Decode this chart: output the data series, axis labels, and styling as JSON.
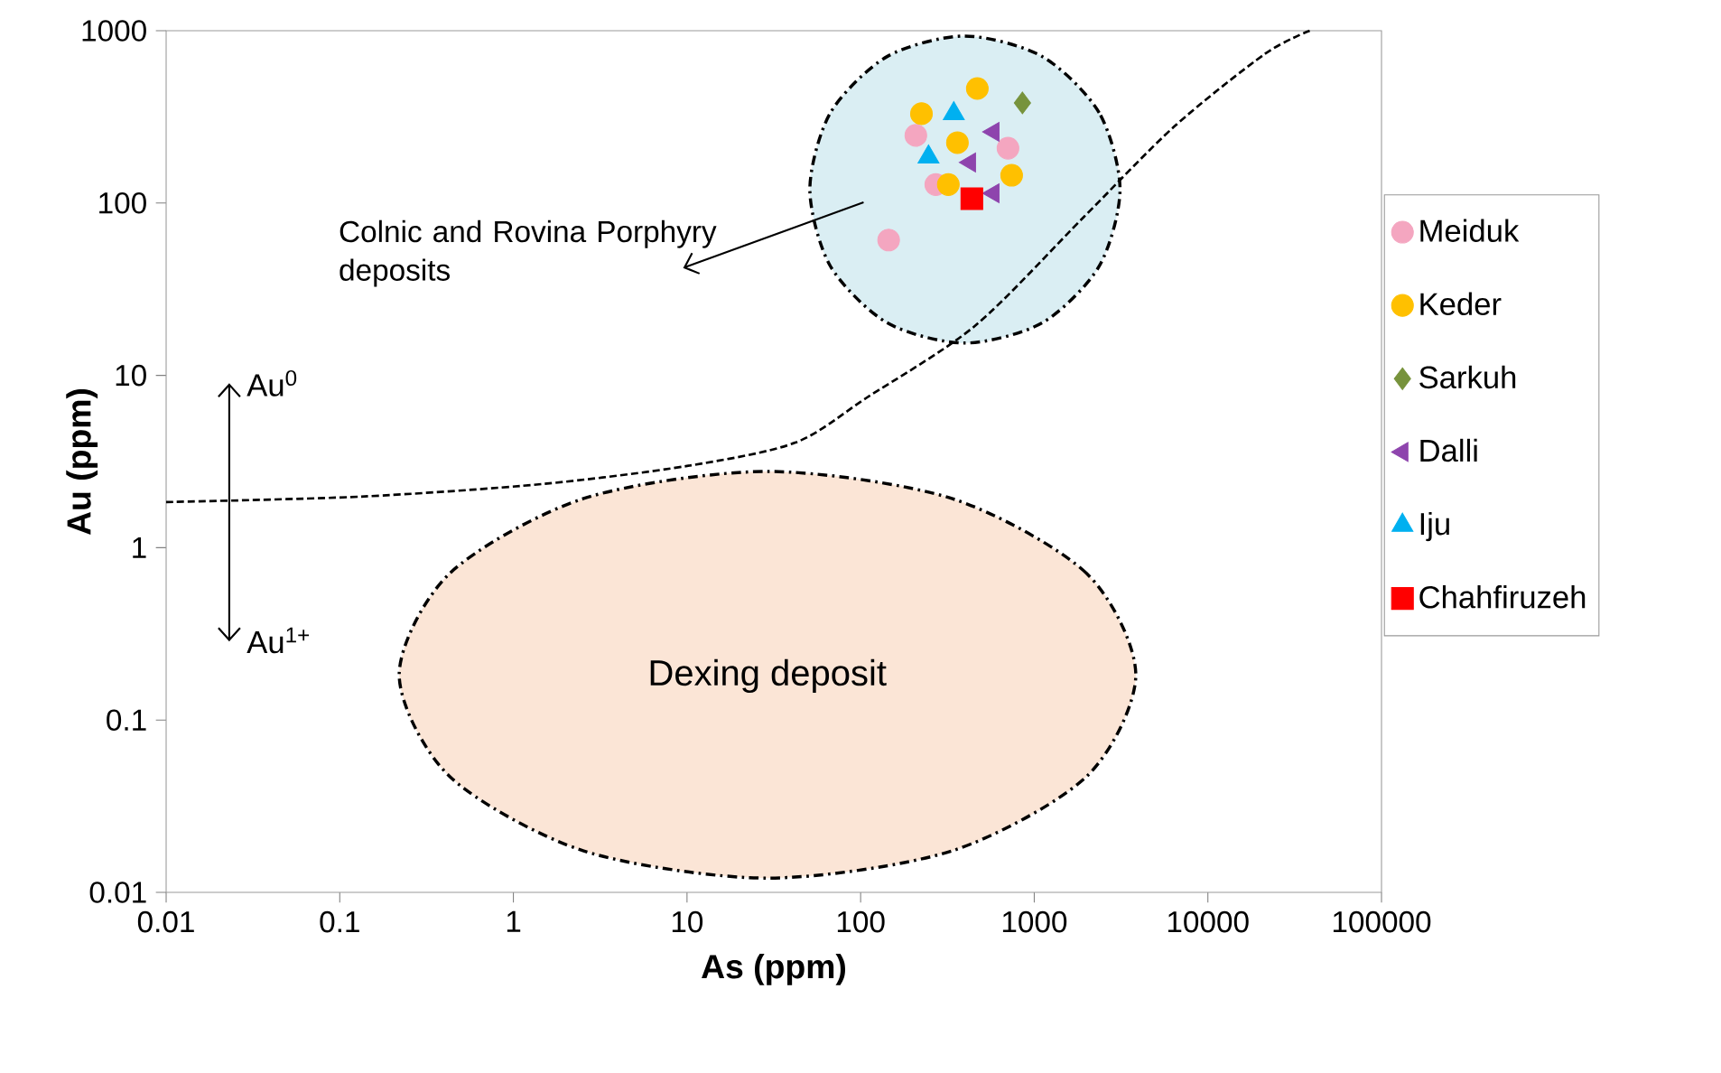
{
  "chart_data": {
    "type": "scatter",
    "xlabel": "As (ppm)",
    "ylabel": "Au (ppm)",
    "log": "xy",
    "xlim": [
      0.01,
      100000
    ],
    "ylim": [
      0.01,
      1000
    ],
    "xticks": [
      0.01,
      0.1,
      1,
      10,
      100,
      1000,
      10000,
      100000
    ],
    "yticks": [
      0.01,
      0.1,
      1,
      10,
      100,
      1000
    ],
    "legend": "right",
    "annotations": [
      "Colnic and Rovina Porphyry deposits",
      "Dexing deposit",
      "Au$^{0}$",
      "Au$^{1+}$"
    ],
    "series": [
      {
        "type": "area",
        "color": "#fbe5d6",
        "line_style": "dashdot",
        "x": [
          3846,
          2000,
          335,
          29,
          2.54,
          0.43,
          0.22,
          0.43,
          2.54,
          29,
          335,
          2000
        ],
        "values": [
          0.183,
          0.71,
          1.93,
          2.77,
          1.93,
          0.71,
          0.183,
          0.047,
          0.0174,
          0.0121,
          0.0174,
          0.047
        ]
      },
      {
        "type": "area",
        "color": "#daeef3",
        "line_style": "dashdot",
        "x": [
          3119,
          2366,
          1114,
          397,
          142,
          67,
          51,
          67,
          142,
          397,
          1114,
          2366
        ],
        "values": [
          120,
          334,
          708,
          931,
          708,
          334,
          120,
          43,
          20.2,
          15.4,
          20.2,
          43
        ]
      },
      {
        "type": "line",
        "color": "#000000",
        "line_style": "dashed",
        "x": [
          0.01,
          0.133,
          1.46,
          10,
          42,
          109,
          459,
          1930,
          6400,
          21200,
          38600
        ],
        "values": [
          1.84,
          1.98,
          2.34,
          2.98,
          4.07,
          7.45,
          19.5,
          83,
          278,
          731,
          1000
        ]
      },
      {
        "name": "Meiduk",
        "color": "#f4a6c0",
        "marker": "circle",
        "x": [
          145,
          208,
          706,
          271
        ],
        "values": [
          61,
          247,
          208,
          128
        ]
      },
      {
        "name": "Keder",
        "color": "#ffc000",
        "marker": "circle",
        "x": [
          470,
          224,
          361,
          320,
          741
        ],
        "values": [
          462,
          330,
          224,
          128,
          145
        ]
      },
      {
        "name": "Sarkuh",
        "color": "#77933c",
        "marker": "diamond",
        "x": [
          855
        ],
        "values": [
          381
        ]
      },
      {
        "name": "Dalli",
        "color": "#8e44ad",
        "marker": "triangle-left",
        "x": [
          583,
          427,
          583
        ],
        "values": [
          259,
          172,
          114
        ]
      },
      {
        "name": "Iju",
        "color": "#00b0f0",
        "marker": "triangle",
        "x": [
          344,
          246
        ],
        "values": [
          330,
          185
        ]
      },
      {
        "name": "Chahfiruzeh",
        "color": "#ff0000",
        "marker": "square",
        "x": [
          437
        ],
        "values": [
          106
        ]
      }
    ]
  }
}
